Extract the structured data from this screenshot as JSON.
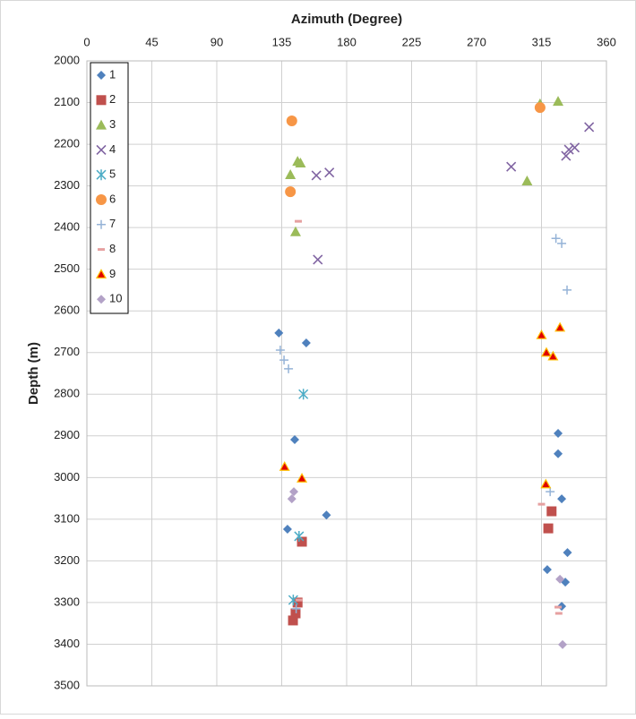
{
  "chart_data": {
    "type": "scatter",
    "title": "Azimuth (Degree)",
    "y_label": "Depth  (m)",
    "xlim": [
      0,
      360
    ],
    "xticks": [
      0,
      45,
      90,
      135,
      180,
      225,
      270,
      315,
      360
    ],
    "ylim": [
      2000,
      3500
    ],
    "yticks": [
      2000,
      2100,
      2200,
      2300,
      2400,
      2500,
      2600,
      2700,
      2800,
      2900,
      3000,
      3100,
      3200,
      3300,
      3400,
      3500
    ],
    "y_inverted": true,
    "x_axis_position": "top",
    "grid": true,
    "legend": "top-left",
    "series": [
      {
        "name": "1",
        "color": "#4f81bd",
        "marker": "diamond",
        "x": [
          133,
          152,
          144,
          326.5,
          326.5,
          329,
          166,
          139,
          333,
          319,
          331.5,
          329,
          145
        ],
        "values": [
          2653,
          2677,
          2909,
          2894,
          2943,
          3051,
          3090,
          3124,
          3180,
          3221,
          3251,
          3309,
          3322
        ]
      },
      {
        "name": "2",
        "color": "#c0504d",
        "marker": "square",
        "x": [
          322,
          319.7,
          149,
          146,
          144.6,
          142.8
        ],
        "values": [
          3081,
          3122,
          3154,
          3300,
          3326,
          3343
        ]
      },
      {
        "name": "3",
        "color": "#9bbb59",
        "marker": "triangle",
        "x": [
          326.5,
          314,
          146,
          148,
          141,
          305,
          144.6
        ],
        "values": [
          2097,
          2103,
          2241,
          2245,
          2273,
          2288,
          2410
        ]
      },
      {
        "name": "4",
        "color": "#8064a2",
        "marker": "x",
        "x": [
          348,
          338,
          334,
          332,
          294,
          168,
          159,
          160
        ],
        "values": [
          2159,
          2208,
          2213,
          2228,
          2254,
          2268,
          2275,
          2477
        ]
      },
      {
        "name": "5",
        "color": "#4bacc6",
        "marker": "asterisk",
        "x": [
          150,
          147,
          143
        ],
        "values": [
          2800,
          3141,
          3294
        ]
      },
      {
        "name": "6",
        "color": "#f79646",
        "marker": "circle",
        "x": [
          142,
          314,
          141
        ],
        "values": [
          2144,
          2112,
          2314
        ]
      },
      {
        "name": "7",
        "color": "#95b3d7",
        "marker": "plus",
        "x": [
          325,
          329,
          332.7,
          134,
          136.6,
          139.7,
          321,
          145
        ],
        "values": [
          2426,
          2438,
          2550,
          2694,
          2718,
          2739,
          3034,
          3315
        ]
      },
      {
        "name": "8",
        "color": "#e6a0a0",
        "marker": "dash",
        "x": [
          146.5,
          315,
          326.5,
          327,
          147
        ],
        "values": [
          2385,
          3064,
          3311,
          3326,
          3294
        ]
      },
      {
        "name": "9",
        "color": "#e00000",
        "marker": "triangle-outlined",
        "x": [
          327.8,
          315,
          318.4,
          323,
          137,
          149,
          318
        ],
        "values": [
          2640,
          2658,
          2700,
          2709,
          2974,
          3002,
          3016
        ]
      },
      {
        "name": "10",
        "color": "#b3a2c7",
        "marker": "diamond",
        "x": [
          143.4,
          142,
          327.8,
          329.6
        ],
        "values": [
          3034,
          3051,
          3244,
          3401
        ]
      }
    ]
  }
}
